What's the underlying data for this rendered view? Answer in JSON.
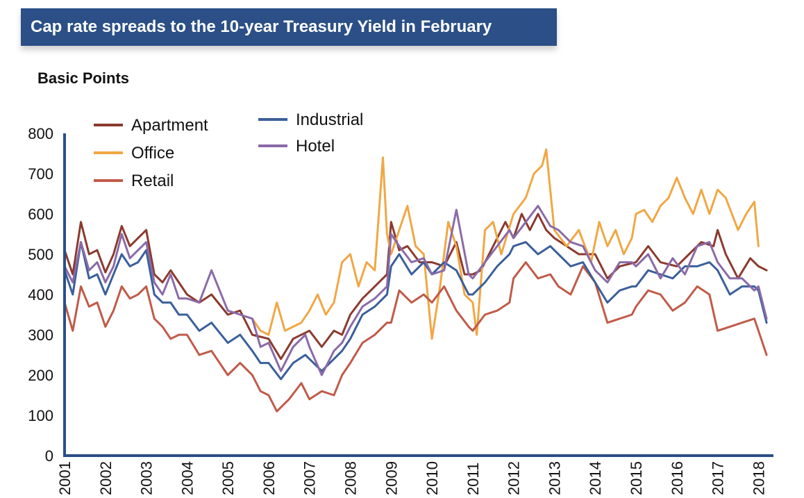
{
  "title": "Cap rate spreads to the 10-year Treasury Yield in February",
  "chart_data": {
    "type": "line",
    "ylabel": "Basic Points",
    "xlabel": "",
    "ylim": [
      0,
      800
    ],
    "xlim": [
      2001,
      2018.3
    ],
    "y_ticks": [
      0,
      100,
      200,
      300,
      400,
      500,
      600,
      700,
      800
    ],
    "x_ticks": [
      "2001",
      "2002",
      "2003",
      "2004",
      "2005",
      "2006",
      "2007",
      "2008",
      "2009",
      "2010",
      "2011",
      "2012",
      "2013",
      "2014",
      "2015",
      "2016",
      "2017",
      "2018"
    ],
    "legend_placement": "top-left",
    "grid": false,
    "series": [
      {
        "name": "Apartment",
        "color": "#8b3a2e",
        "x": [
          2001.0,
          2001.2,
          2001.4,
          2001.6,
          2001.8,
          2002.0,
          2002.2,
          2002.4,
          2002.6,
          2002.8,
          2003.0,
          2003.2,
          2003.4,
          2003.6,
          2003.8,
          2004.0,
          2004.3,
          2004.6,
          2005.0,
          2005.3,
          2005.6,
          2006.0,
          2006.3,
          2006.6,
          2007.0,
          2007.3,
          2007.6,
          2007.8,
          2008.0,
          2008.3,
          2008.6,
          2008.9,
          2009.0,
          2009.2,
          2009.4,
          2009.7,
          2010.0,
          2010.3,
          2010.6,
          2010.8,
          2011.0,
          2011.2,
          2011.5,
          2011.8,
          2012.0,
          2012.2,
          2012.4,
          2012.6,
          2012.8,
          2013.0,
          2013.3,
          2013.6,
          2014.0,
          2014.3,
          2014.6,
          2015.0,
          2015.3,
          2015.6,
          2016.0,
          2016.3,
          2016.6,
          2016.9,
          2017.0,
          2017.2,
          2017.5,
          2017.8,
          2018.0,
          2018.2
        ],
        "y": [
          510,
          450,
          580,
          500,
          510,
          455,
          500,
          570,
          520,
          540,
          560,
          450,
          430,
          460,
          430,
          400,
          380,
          400,
          350,
          360,
          300,
          290,
          240,
          290,
          310,
          270,
          310,
          300,
          350,
          390,
          420,
          450,
          580,
          510,
          520,
          480,
          480,
          470,
          530,
          450,
          450,
          460,
          520,
          580,
          540,
          600,
          560,
          600,
          560,
          540,
          520,
          500,
          500,
          440,
          470,
          480,
          520,
          480,
          470,
          500,
          530,
          520,
          560,
          500,
          440,
          490,
          470,
          460
        ]
      },
      {
        "name": "Office",
        "color": "#f0a744",
        "x": [
          2005.6,
          2005.8,
          2006.0,
          2006.2,
          2006.4,
          2006.6,
          2006.8,
          2007.0,
          2007.2,
          2007.4,
          2007.6,
          2007.8,
          2008.0,
          2008.2,
          2008.4,
          2008.6,
          2008.8,
          2008.9,
          2009.0,
          2009.2,
          2009.4,
          2009.6,
          2009.8,
          2010.0,
          2010.2,
          2010.4,
          2010.6,
          2010.8,
          2011.0,
          2011.1,
          2011.3,
          2011.5,
          2011.7,
          2012.0,
          2012.3,
          2012.5,
          2012.7,
          2012.8,
          2013.0,
          2013.3,
          2013.6,
          2013.9,
          2014.1,
          2014.3,
          2014.5,
          2014.7,
          2014.9,
          2015.0,
          2015.2,
          2015.4,
          2015.6,
          2015.8,
          2016.0,
          2016.2,
          2016.4,
          2016.6,
          2016.8,
          2017.0,
          2017.2,
          2017.5,
          2017.7,
          2017.9,
          2018.0
        ],
        "y": [
          340,
          310,
          300,
          380,
          310,
          320,
          330,
          360,
          400,
          350,
          380,
          480,
          500,
          420,
          480,
          460,
          740,
          550,
          500,
          560,
          620,
          520,
          500,
          290,
          420,
          580,
          520,
          400,
          380,
          300,
          560,
          580,
          500,
          600,
          640,
          700,
          720,
          760,
          560,
          520,
          560,
          480,
          580,
          520,
          560,
          500,
          540,
          600,
          610,
          580,
          620,
          640,
          690,
          640,
          600,
          660,
          600,
          660,
          640,
          560,
          600,
          630,
          520
        ]
      },
      {
        "name": "Retail",
        "color": "#c05a48",
        "x": [
          2001.0,
          2001.2,
          2001.4,
          2001.6,
          2001.8,
          2002.0,
          2002.2,
          2002.4,
          2002.6,
          2002.8,
          2003.0,
          2003.2,
          2003.4,
          2003.6,
          2003.8,
          2004.0,
          2004.3,
          2004.6,
          2005.0,
          2005.3,
          2005.6,
          2005.8,
          2006.0,
          2006.2,
          2006.5,
          2006.8,
          2007.0,
          2007.3,
          2007.6,
          2007.8,
          2008.0,
          2008.3,
          2008.6,
          2008.9,
          2009.0,
          2009.2,
          2009.5,
          2009.8,
          2010.0,
          2010.3,
          2010.6,
          2010.9,
          2011.0,
          2011.3,
          2011.6,
          2011.9,
          2012.0,
          2012.3,
          2012.6,
          2012.9,
          2013.1,
          2013.4,
          2013.7,
          2014.0,
          2014.3,
          2014.6,
          2014.9,
          2015.0,
          2015.3,
          2015.6,
          2015.9,
          2016.2,
          2016.5,
          2016.8,
          2017.0,
          2017.3,
          2017.6,
          2017.9,
          2018.0,
          2018.2
        ],
        "y": [
          380,
          310,
          420,
          370,
          380,
          320,
          360,
          420,
          390,
          400,
          420,
          340,
          320,
          290,
          300,
          300,
          250,
          260,
          200,
          230,
          200,
          160,
          150,
          110,
          140,
          180,
          140,
          160,
          150,
          200,
          230,
          280,
          300,
          330,
          330,
          410,
          380,
          400,
          380,
          420,
          360,
          320,
          310,
          350,
          360,
          380,
          440,
          480,
          440,
          450,
          420,
          400,
          470,
          430,
          330,
          340,
          350,
          370,
          410,
          400,
          360,
          380,
          420,
          400,
          310,
          320,
          330,
          340,
          310,
          250
        ]
      },
      {
        "name": "Industrial",
        "color": "#3a5f9a",
        "x": [
          2001.0,
          2001.2,
          2001.4,
          2001.6,
          2001.8,
          2002.0,
          2002.2,
          2002.4,
          2002.6,
          2002.8,
          2003.0,
          2003.2,
          2003.4,
          2003.6,
          2003.8,
          2004.0,
          2004.3,
          2004.6,
          2005.0,
          2005.3,
          2005.6,
          2005.8,
          2006.0,
          2006.3,
          2006.6,
          2006.9,
          2007.0,
          2007.3,
          2007.6,
          2007.8,
          2008.0,
          2008.3,
          2008.6,
          2008.9,
          2009.0,
          2009.2,
          2009.5,
          2009.8,
          2010.0,
          2010.3,
          2010.6,
          2010.9,
          2011.0,
          2011.3,
          2011.6,
          2011.9,
          2012.0,
          2012.3,
          2012.6,
          2012.9,
          2013.1,
          2013.4,
          2013.7,
          2014.0,
          2014.3,
          2014.6,
          2014.9,
          2015.0,
          2015.3,
          2015.6,
          2015.9,
          2016.2,
          2016.5,
          2016.8,
          2017.0,
          2017.3,
          2017.6,
          2017.9,
          2018.0,
          2018.2
        ],
        "y": [
          460,
          400,
          530,
          440,
          450,
          400,
          450,
          500,
          470,
          480,
          510,
          400,
          380,
          380,
          350,
          350,
          310,
          330,
          280,
          300,
          260,
          230,
          230,
          190,
          230,
          250,
          240,
          210,
          240,
          260,
          290,
          350,
          370,
          400,
          470,
          500,
          450,
          480,
          450,
          480,
          460,
          400,
          400,
          430,
          470,
          500,
          520,
          530,
          500,
          520,
          500,
          470,
          480,
          430,
          380,
          410,
          420,
          420,
          460,
          450,
          440,
          470,
          470,
          480,
          460,
          400,
          420,
          420,
          410,
          330
        ]
      },
      {
        "name": "Hotel",
        "color": "#8a6aa8",
        "x": [
          2001.0,
          2001.2,
          2001.4,
          2001.6,
          2001.8,
          2002.0,
          2002.2,
          2002.4,
          2002.6,
          2002.8,
          2003.0,
          2003.2,
          2003.4,
          2003.6,
          2003.8,
          2004.0,
          2004.3,
          2004.6,
          2005.0,
          2005.3,
          2005.6,
          2005.8,
          2006.0,
          2006.3,
          2006.6,
          2006.9,
          2007.0,
          2007.3,
          2007.6,
          2007.8,
          2008.0,
          2008.3,
          2008.6,
          2008.9,
          2009.0,
          2009.2,
          2009.5,
          2009.8,
          2010.0,
          2010.3,
          2010.6,
          2010.9,
          2011.0,
          2011.3,
          2011.6,
          2011.9,
          2012.0,
          2012.3,
          2012.6,
          2012.9,
          2013.1,
          2013.4,
          2013.7,
          2014.0,
          2014.3,
          2014.6,
          2014.9,
          2015.0,
          2015.3,
          2015.6,
          2015.9,
          2016.2,
          2016.5,
          2016.8,
          2017.0,
          2017.3,
          2017.6,
          2017.9,
          2018.0,
          2018.2
        ],
        "y": [
          470,
          430,
          530,
          460,
          480,
          430,
          470,
          550,
          490,
          510,
          530,
          430,
          400,
          450,
          390,
          390,
          380,
          460,
          360,
          350,
          340,
          270,
          280,
          210,
          270,
          300,
          270,
          200,
          260,
          280,
          320,
          370,
          390,
          420,
          550,
          520,
          480,
          490,
          450,
          460,
          610,
          450,
          440,
          480,
          520,
          560,
          540,
          580,
          620,
          570,
          560,
          530,
          520,
          460,
          430,
          480,
          480,
          470,
          500,
          440,
          490,
          450,
          520,
          530,
          480,
          440,
          440,
          410,
          420,
          340
        ]
      }
    ]
  }
}
